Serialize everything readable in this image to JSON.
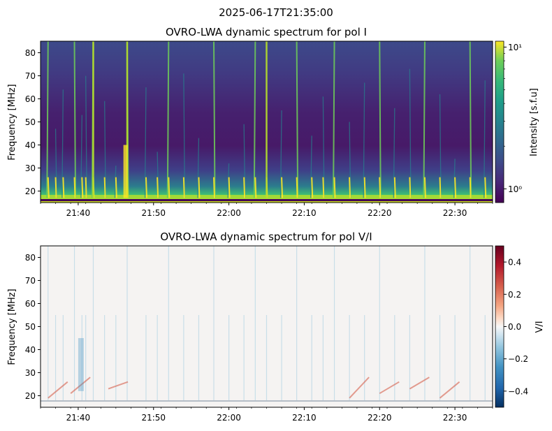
{
  "figure": {
    "suptitle": "2025-06-17T21:35:00"
  },
  "chart_data": [
    {
      "type": "heatmap",
      "title": "OVRO-LWA dynamic spectrum for pol I",
      "xlabel": "",
      "ylabel": "Frequency [MHz]",
      "xlim": [
        "21:35",
        "22:35"
      ],
      "ylim": [
        15,
        85
      ],
      "x_ticks": [
        "21:40",
        "21:50",
        "22:00",
        "22:10",
        "22:20",
        "22:30"
      ],
      "y_ticks": [
        20,
        30,
        40,
        50,
        60,
        70,
        80
      ],
      "colormap": "viridis",
      "colorbar": {
        "label": "Intensity [s.f.u]",
        "scale": "log",
        "range": [
          0.8,
          11
        ],
        "ticks": [
          "10^0",
          "10^1"
        ]
      },
      "bursts_time": [
        "21:36",
        "21:37",
        "21:38",
        "21:39.5",
        "21:40.5",
        "21:41",
        "21:42",
        "21:43.5",
        "21:45",
        "21:46.5",
        "21:49",
        "21:50.5",
        "21:52",
        "21:54",
        "21:56",
        "21:58",
        "22:00",
        "22:02",
        "22:03.5",
        "22:05",
        "22:07",
        "22:09",
        "22:11",
        "22:12.5",
        "22:14",
        "22:16",
        "22:18",
        "22:20",
        "22:22",
        "22:24",
        "22:26",
        "22:28",
        "22:30",
        "22:32",
        "22:34"
      ]
    },
    {
      "type": "heatmap",
      "title": "OVRO-LWA dynamic spectrum for pol V/I",
      "xlabel": "",
      "ylabel": "Frequency [MHz]",
      "xlim": [
        "21:35",
        "22:35"
      ],
      "ylim": [
        15,
        85
      ],
      "x_ticks": [
        "21:40",
        "21:50",
        "22:00",
        "22:10",
        "22:20",
        "22:30"
      ],
      "y_ticks": [
        20,
        30,
        40,
        50,
        60,
        70,
        80
      ],
      "colormap": "RdBu_r",
      "colorbar": {
        "label": "V/I",
        "scale": "linear",
        "range": [
          -0.5,
          0.5
        ],
        "ticks": [
          "−0.4",
          "−0.2",
          "0.0",
          "0.2",
          "0.4"
        ]
      }
    }
  ]
}
